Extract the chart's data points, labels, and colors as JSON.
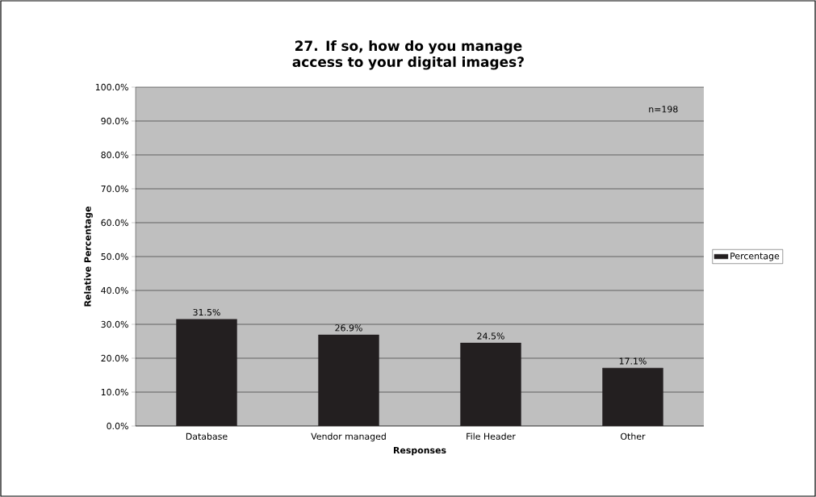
{
  "chart_data": {
    "type": "bar",
    "title": "27. If so, how do you manage access to your digital images?",
    "xlabel": "Responses",
    "ylabel": "Relative Percentage",
    "categories": [
      "Database",
      "Vendor managed",
      "File Header",
      "Other"
    ],
    "series": [
      {
        "name": "Percentage",
        "color": "#231f20",
        "values": [
          31.5,
          26.9,
          24.5,
          17.1
        ],
        "value_labels": [
          "31.5%",
          "26.9%",
          "24.5%",
          "17.1%"
        ]
      }
    ],
    "ylim": [
      0,
      100
    ],
    "yticks": [
      {
        "value": 0,
        "label": "0.0%"
      },
      {
        "value": 10,
        "label": "10.0%"
      },
      {
        "value": 20,
        "label": "20.0%"
      },
      {
        "value": 30,
        "label": "30.0%"
      },
      {
        "value": 40,
        "label": "40.0%"
      },
      {
        "value": 50,
        "label": "50.0%"
      },
      {
        "value": 60,
        "label": "60.0%"
      },
      {
        "value": 70,
        "label": "70.0%"
      },
      {
        "value": 80,
        "label": "80.0%"
      },
      {
        "value": 90,
        "label": "90.0%"
      },
      {
        "value": 100,
        "label": "100.0%"
      }
    ],
    "grid": "y",
    "legend": "right",
    "annotations": [
      "n=198"
    ]
  }
}
